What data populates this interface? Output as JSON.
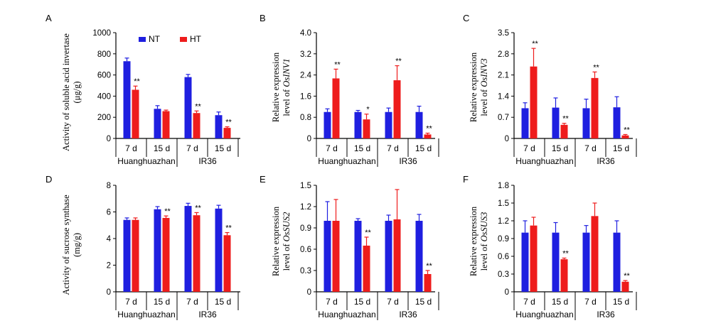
{
  "colors": {
    "NT": "#1f1fe0",
    "HT": "#ee1c1c",
    "axis": "#000000"
  },
  "chart_data": [
    {
      "panel": "A",
      "type": "bar",
      "ylabel_lines": [
        "Activity of soluble acid invertase",
        "(μg/g)"
      ],
      "ylim": [
        0,
        1000
      ],
      "yticks": [
        "0",
        "200",
        "400",
        "600",
        "800",
        "1000"
      ],
      "categories": [
        "7 d",
        "15 d",
        "7 d",
        "15 d"
      ],
      "groups": [
        "Huanghuazhan",
        "IR36"
      ],
      "legend": true,
      "series": [
        {
          "name": "NT",
          "values": [
            730,
            280,
            580,
            220
          ],
          "errors": [
            30,
            30,
            25,
            30
          ],
          "stars": [
            "",
            "",
            "",
            ""
          ]
        },
        {
          "name": "HT",
          "values": [
            460,
            258,
            240,
            100
          ],
          "errors": [
            35,
            10,
            20,
            10
          ],
          "stars": [
            "**",
            "",
            "**",
            "**"
          ]
        }
      ]
    },
    {
      "panel": "B",
      "type": "bar",
      "ylabel_lines": [
        "Relative expression",
        "level of OsINV1"
      ],
      "ylim": [
        0,
        4
      ],
      "yticks": [
        "0",
        "0.8",
        "1.6",
        "2.4",
        "3.2",
        "4.0"
      ],
      "categories": [
        "7 d",
        "15 d",
        "7 d",
        "15 d"
      ],
      "groups": [
        "Huanghuazhan",
        "IR36"
      ],
      "series": [
        {
          "name": "NT",
          "values": [
            1.0,
            1.0,
            1.0,
            1.0
          ],
          "errors": [
            0.12,
            0.06,
            0.15,
            0.22
          ],
          "stars": [
            "",
            "",
            "",
            ""
          ]
        },
        {
          "name": "HT",
          "values": [
            2.27,
            0.72,
            2.2,
            0.15
          ],
          "errors": [
            0.35,
            0.2,
            0.55,
            0.05
          ],
          "stars": [
            "**",
            "*",
            "**",
            "**"
          ]
        }
      ]
    },
    {
      "panel": "C",
      "type": "bar",
      "ylabel_lines": [
        "Relative expression",
        "level of OsINV3"
      ],
      "ylim": [
        0,
        3.5
      ],
      "yticks": [
        "0",
        "0.7",
        "1.4",
        "2.1",
        "2.8",
        "3.5"
      ],
      "categories": [
        "7 d",
        "15 d",
        "7 d",
        "15 d"
      ],
      "groups": [
        "Huanghuazhan",
        "IR36"
      ],
      "series": [
        {
          "name": "NT",
          "values": [
            1.0,
            1.02,
            1.0,
            1.03
          ],
          "errors": [
            0.18,
            0.32,
            0.3,
            0.35
          ],
          "stars": [
            "",
            "",
            "",
            ""
          ]
        },
        {
          "name": "HT",
          "values": [
            2.38,
            0.45,
            2.0,
            0.1
          ],
          "errors": [
            0.6,
            0.05,
            0.2,
            0.03
          ],
          "stars": [
            "**",
            "**",
            "**",
            "**"
          ]
        }
      ]
    },
    {
      "panel": "D",
      "type": "bar",
      "ylabel_lines": [
        "Activity of sucrose synthase",
        "(mg/g)"
      ],
      "ylim": [
        0,
        8
      ],
      "yticks": [
        "0",
        "2",
        "4",
        "6",
        "8"
      ],
      "categories": [
        "7 d",
        "15 d",
        "7 d",
        "15 d"
      ],
      "groups": [
        "Huanghuazhan",
        "IR36"
      ],
      "series": [
        {
          "name": "NT",
          "values": [
            5.4,
            6.2,
            6.45,
            6.25
          ],
          "errors": [
            0.15,
            0.2,
            0.2,
            0.25
          ],
          "stars": [
            "",
            "",
            "",
            ""
          ]
        },
        {
          "name": "HT",
          "values": [
            5.4,
            5.55,
            5.75,
            4.25
          ],
          "errors": [
            0.15,
            0.15,
            0.2,
            0.2
          ],
          "stars": [
            "",
            "**",
            "**",
            "**"
          ]
        }
      ]
    },
    {
      "panel": "E",
      "type": "bar",
      "ylabel_lines": [
        "Relative expression",
        "level of OsSUS2"
      ],
      "ylim": [
        0,
        1.5
      ],
      "yticks": [
        "0",
        "0.3",
        "0.6",
        "0.9",
        "1.2",
        "1.5"
      ],
      "categories": [
        "7 d",
        "15 d",
        "7 d",
        "15 d"
      ],
      "groups": [
        "Huanghuazhan",
        "IR36"
      ],
      "series": [
        {
          "name": "NT",
          "values": [
            1.0,
            1.0,
            1.0,
            1.0
          ],
          "errors": [
            0.27,
            0.03,
            0.08,
            0.09
          ],
          "stars": [
            "",
            "",
            "",
            ""
          ]
        },
        {
          "name": "HT",
          "values": [
            1.0,
            0.65,
            1.02,
            0.25
          ],
          "errors": [
            0.3,
            0.12,
            0.42,
            0.05
          ],
          "stars": [
            "",
            "**",
            "",
            "**"
          ]
        }
      ]
    },
    {
      "panel": "F",
      "type": "bar",
      "ylabel_lines": [
        "Relative expression",
        "level of OsSUS3"
      ],
      "ylim": [
        0,
        1.8
      ],
      "yticks": [
        "0",
        "0.3",
        "0.6",
        "0.9",
        "1.2",
        "1.5",
        "1.8"
      ],
      "categories": [
        "7 d",
        "15 d",
        "7 d",
        "15 d"
      ],
      "groups": [
        "Huanghuazhan",
        "IR36"
      ],
      "series": [
        {
          "name": "NT",
          "values": [
            1.0,
            1.0,
            1.0,
            1.0
          ],
          "errors": [
            0.2,
            0.17,
            0.12,
            0.2
          ],
          "stars": [
            "",
            "",
            "",
            ""
          ]
        },
        {
          "name": "HT",
          "values": [
            1.12,
            0.55,
            1.28,
            0.17
          ],
          "errors": [
            0.14,
            0.02,
            0.22,
            0.02
          ],
          "stars": [
            "",
            "**",
            "",
            "**"
          ]
        }
      ]
    }
  ]
}
